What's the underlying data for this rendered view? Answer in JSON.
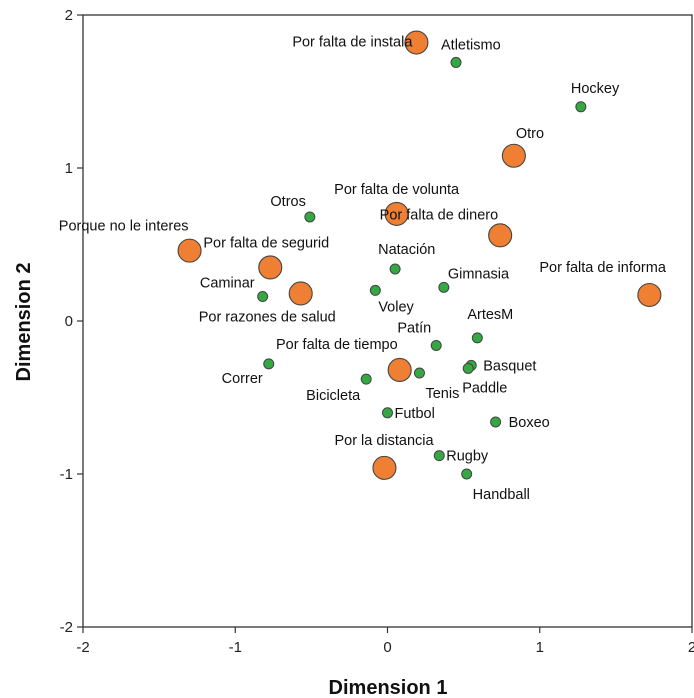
{
  "chart_data": {
    "type": "scatter",
    "title": "",
    "xlabel": "Dimension 1",
    "ylabel": "Dimension 2",
    "xlim": [
      -2,
      2
    ],
    "ylim": [
      -2,
      2
    ],
    "x_ticks": [
      "-2",
      "-1",
      "0",
      "1",
      "2"
    ],
    "y_ticks": [
      "2",
      "1",
      "0",
      "-1",
      "-2"
    ],
    "grid": false,
    "legend": "none",
    "colors": {
      "reasons": "#ee7f33",
      "sports": "#34a843",
      "outline": "#444444"
    },
    "series": [
      {
        "points": [
          {
            "label": "Por falta de instala",
            "x": 0.19,
            "y": 1.82
          },
          {
            "label": "Otro",
            "x": 0.83,
            "y": 1.08
          },
          {
            "label": "Por falta de volunta",
            "x": 0.06,
            "y": 0.7
          },
          {
            "label": "Por falta de dinero",
            "x": 0.74,
            "y": 0.56
          },
          {
            "label": "Porque no le interes",
            "x": -1.3,
            "y": 0.46
          },
          {
            "label": "Por falta de segurid",
            "x": -0.77,
            "y": 0.35
          },
          {
            "label": "Por razones de salud",
            "x": -0.57,
            "y": 0.18
          },
          {
            "label": "Por falta de informa",
            "x": 1.72,
            "y": 0.17
          },
          {
            "label": "Por falta de tiempo",
            "x": 0.08,
            "y": -0.32
          },
          {
            "label": "Por la distancia",
            "x": -0.02,
            "y": -0.96
          }
        ]
      },
      {
        "points": [
          {
            "label": "Atletismo",
            "x": 0.45,
            "y": 1.69
          },
          {
            "label": "Hockey",
            "x": 1.27,
            "y": 1.4
          },
          {
            "label": "Otros",
            "x": -0.51,
            "y": 0.68
          },
          {
            "label": "Natación",
            "x": 0.05,
            "y": 0.34
          },
          {
            "label": "Gimnasia",
            "x": 0.37,
            "y": 0.22
          },
          {
            "label": "Voley",
            "x": -0.08,
            "y": 0.2
          },
          {
            "label": "Caminar",
            "x": -0.82,
            "y": 0.16
          },
          {
            "label": "ArtesM",
            "x": 0.59,
            "y": -0.11
          },
          {
            "label": "Patín",
            "x": 0.32,
            "y": -0.16
          },
          {
            "label": "Correr",
            "x": -0.78,
            "y": -0.28
          },
          {
            "label": "Basquet",
            "x": 0.55,
            "y": -0.29
          },
          {
            "label": "Paddle",
            "x": 0.53,
            "y": -0.31
          },
          {
            "label": "Tenis",
            "x": 0.21,
            "y": -0.34
          },
          {
            "label": "Bicicleta",
            "x": -0.14,
            "y": -0.38
          },
          {
            "label": "Futbol",
            "x": 0.0,
            "y": -0.6
          },
          {
            "label": "Boxeo",
            "x": 0.71,
            "y": -0.66
          },
          {
            "label": "Rugby",
            "x": 0.34,
            "y": -0.88
          },
          {
            "label": "Handball",
            "x": 0.52,
            "y": -1.0
          }
        ]
      }
    ]
  }
}
